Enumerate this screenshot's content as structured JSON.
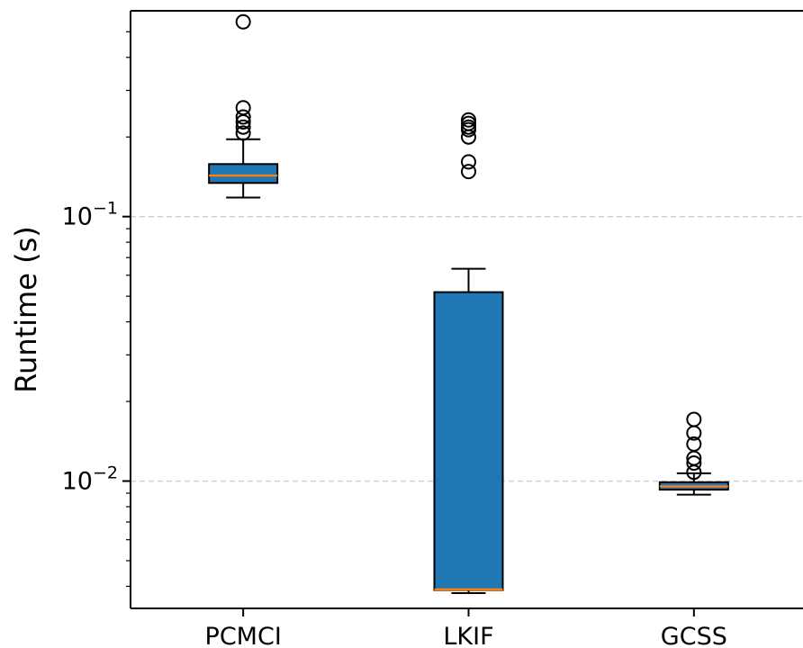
{
  "chart_data": {
    "type": "box",
    "title": "",
    "xlabel": "",
    "ylabel": "Runtime (s)",
    "yscale": "log",
    "ylim": [
      0.0033,
      0.6
    ],
    "grid": "y-major-dashed",
    "categories": [
      "PCMCI",
      "LKIF",
      "GCSS"
    ],
    "yticks": [
      {
        "value": 0.1,
        "base": "10",
        "exponent": "−1"
      },
      {
        "value": 0.01,
        "base": "10",
        "exponent": "−2"
      }
    ],
    "boxes": [
      {
        "name": "PCMCI",
        "whislo": 0.118,
        "q1": 0.134,
        "median": 0.143,
        "q3": 0.158,
        "whishi": 0.196,
        "fliers": [
          0.545,
          0.258,
          0.238,
          0.228,
          0.218,
          0.207
        ]
      },
      {
        "name": "LKIF",
        "whislo": 0.00377,
        "q1": 0.00387,
        "median": 0.00389,
        "q3": 0.0518,
        "whishi": 0.0635,
        "fliers": [
          0.232,
          0.225,
          0.218,
          0.213,
          0.2,
          0.161,
          0.148
        ]
      },
      {
        "name": "GCSS",
        "whislo": 0.00888,
        "q1": 0.00928,
        "median": 0.00955,
        "q3": 0.0099,
        "whishi": 0.0107,
        "fliers": [
          0.0171,
          0.0152,
          0.0138,
          0.0122,
          0.0117,
          0.0108
        ]
      }
    ],
    "colors": {
      "box_fill": "#1f77b4",
      "median": "#ff7f0e",
      "grid": "#cccccc"
    }
  }
}
